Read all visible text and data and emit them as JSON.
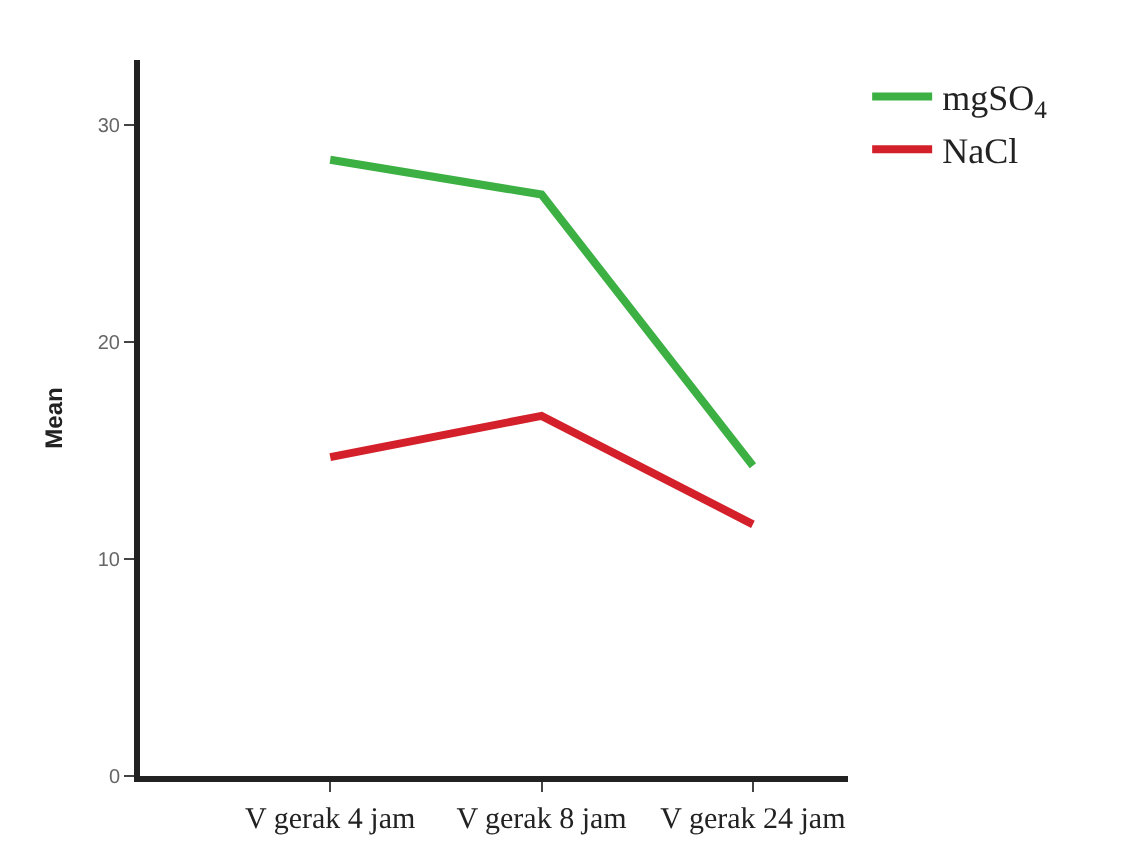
{
  "chart_data": {
    "type": "line",
    "ylabel": "Mean",
    "categories": [
      "V gerak 4 jam",
      "V gerak 8 jam",
      "V gerak 24 jam"
    ],
    "series": [
      {
        "name": "mgSO$_{4}$",
        "color": "#3cb043",
        "values": [
          28.4,
          26.8,
          14.3
        ]
      },
      {
        "name": "NaCl",
        "color": "#d4202a",
        "values": [
          14.7,
          16.6,
          11.6
        ]
      }
    ],
    "ylim": [
      0,
      33
    ],
    "yticks": [
      0,
      10,
      20,
      30
    ],
    "legend": "top right",
    "marker": "none",
    "line_style": "solid"
  }
}
